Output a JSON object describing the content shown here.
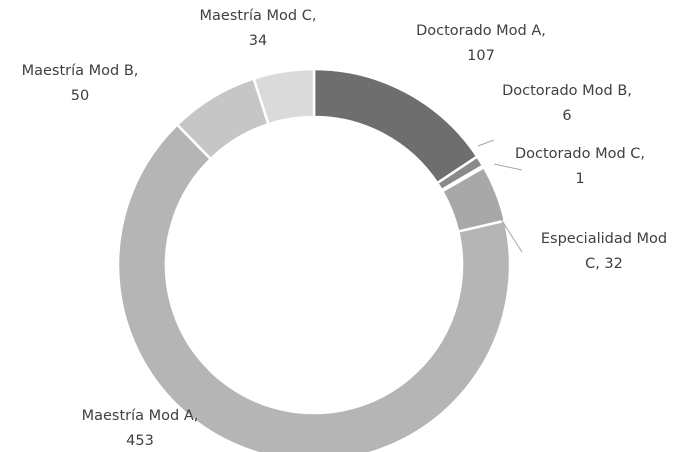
{
  "chart_data": {
    "type": "donut",
    "categories": [
      "Doctorado Mod A",
      "Doctorado Mod B",
      "Doctorado Mod C",
      "Especialidad Mod C",
      "Maestría Mod A",
      "Maestría Mod B",
      "Maestría Mod C"
    ],
    "values": [
      107,
      6,
      1,
      32,
      453,
      50,
      34
    ],
    "value_labels": [
      "Doctorado Mod A, 107",
      "Doctorado Mod B, 6",
      "Doctorado Mod C, 1",
      "Especialidad Mod C, 32",
      "Maestría Mod A, 453",
      "Maestría Mod B, 50",
      "Maestría Mod C, 34"
    ],
    "colors": [
      "#6e6e6e",
      "#8a8a8a",
      "#9a9a9a",
      "#a8a8a8",
      "#b5b5b5",
      "#c6c6c6",
      "#dadada"
    ]
  }
}
